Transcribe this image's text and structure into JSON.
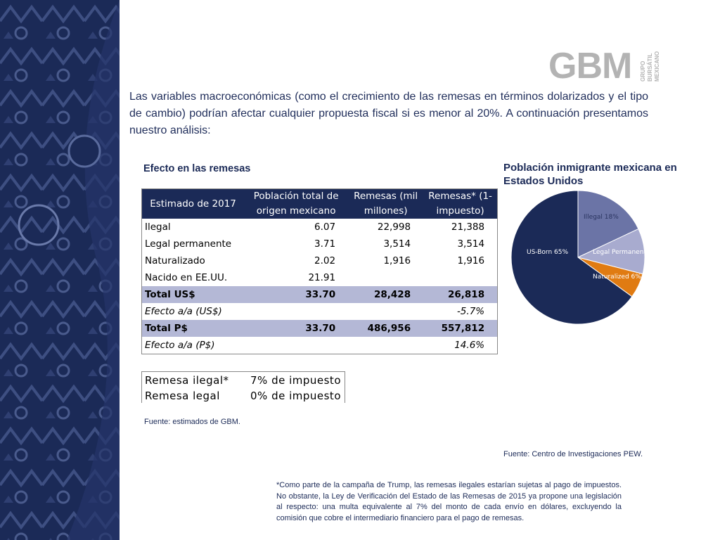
{
  "logo": {
    "text": "GBM",
    "sub": [
      "GRUPO",
      "BURSÁTIL",
      "MEXICANO"
    ]
  },
  "intro": "Las variables macroeconómicas (como el crecimiento de las remesas en términos dolarizados y el tipo de cambio) podrían afectar cualquier propuesta fiscal si es menor al 20%. A continuación presentamos nuestro análisis:",
  "table": {
    "title": "Efecto en las remesas",
    "header": [
      "Estimado de 2017",
      "Población total de origen mexicano",
      "Remesas (mil millones)",
      "Remesas* (1-impuesto)"
    ],
    "rows": [
      [
        "Ilegal",
        "6.07",
        "22,998",
        "21,388"
      ],
      [
        "Legal permanente",
        "3.71",
        "3,514",
        "3,514"
      ],
      [
        "Naturalizado",
        "2.02",
        "1,916",
        "1,916"
      ],
      [
        "Nacido en EE.UU.",
        "21.91",
        null,
        null
      ],
      [
        "Total US$",
        "33.70",
        "28,428",
        "26,818"
      ],
      [
        "Efecto a/a (US$)",
        null,
        null,
        "-5.7%"
      ],
      [
        "Total P$",
        "33.70",
        "486,956",
        "557,812"
      ],
      [
        "Efecto a/a (P$)",
        null,
        null,
        "14.6%"
      ]
    ]
  },
  "tax_table": {
    "rows": [
      [
        "Remesa ilegal*",
        "7% de impuesto"
      ],
      [
        "Remesa legal",
        "0% de impuesto"
      ]
    ]
  },
  "table_source": "Fuente: estimados de GBM.",
  "chart_data": {
    "type": "pie",
    "title": "Población inmigrante mexicana en Estados Unidos",
    "categories": [
      "Illegal",
      "Legal Permanent",
      "Naturalized",
      "US-Born"
    ],
    "values": [
      18,
      11,
      6,
      65
    ],
    "value_labels": [
      "Illegal 18%",
      "Legal Permanent",
      "Naturalized 6%",
      "US-Born 65%"
    ],
    "colors": [
      "#6b74a6",
      "#a8abcf",
      "#e07b12",
      "#1b2a57"
    ]
  },
  "chart_source": "Fuente: Centro de Investigaciones PEW.",
  "footnote": "*Como parte de la campaña de Trump, las remesas ilegales estarían sujetas al pago de impuestos. No obstante, la Ley de Verificación del Estado de las Remesas de 2015 ya propone una legislación al respecto: una multa equivalente al 7% del monto de cada envío en dólares, excluyendo la comisión que cobre el intermediario financiero para el pago de remesas."
}
